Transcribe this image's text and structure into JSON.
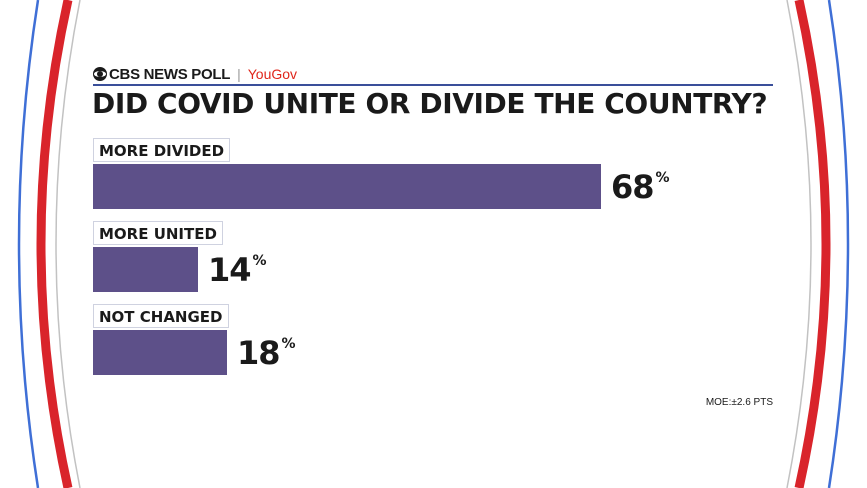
{
  "brand": {
    "name": "CBS NEWS POLL",
    "separator": "|",
    "partner": "YouGov",
    "eye_icon": "cbs-eye-icon"
  },
  "colors": {
    "bar": "#5d5089",
    "ring_red": "#d9242b",
    "ring_blue": "#3f6fd6",
    "accent_rule": "#3a4f9a",
    "partner_red": "#e0261b"
  },
  "chart_data": {
    "type": "bar",
    "orientation": "horizontal",
    "title": "DID COVID UNITE OR DIVIDE THE COUNTRY?",
    "categories": [
      "MORE DIVIDED",
      "MORE UNITED",
      "NOT CHANGED"
    ],
    "values": [
      68,
      14,
      18
    ],
    "value_suffix": "%",
    "xlim": [
      0,
      100
    ],
    "grid": false,
    "legend": "none"
  },
  "footnote": "MOE:±2.6 PTS"
}
